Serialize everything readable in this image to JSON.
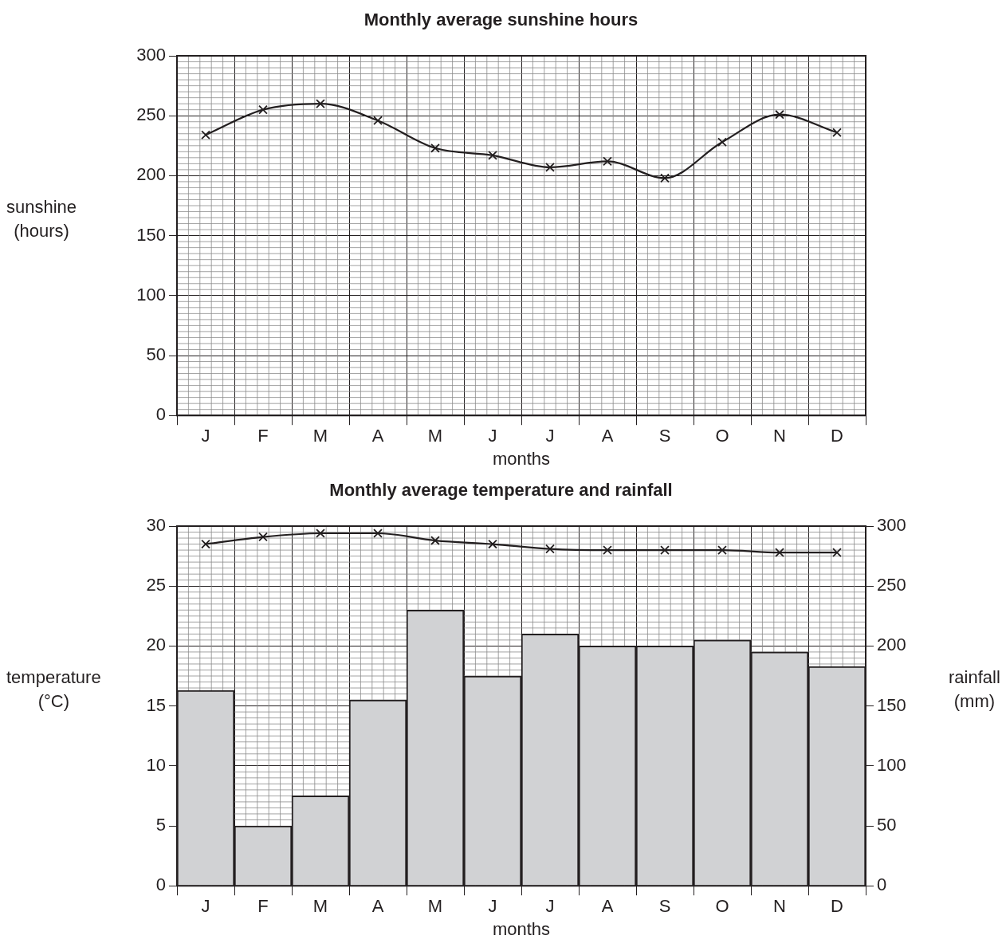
{
  "chart_data": [
    {
      "type": "line",
      "title": "Monthly average sunshine hours",
      "xlabel": "months",
      "ylabel": "sunshine (hours)",
      "categories": [
        "J",
        "F",
        "M",
        "A",
        "M",
        "J",
        "J",
        "A",
        "S",
        "O",
        "N",
        "D"
      ],
      "series": [
        {
          "color": "#231f20",
          "values": [
            234,
            255,
            260,
            246,
            223,
            217,
            207,
            212,
            198,
            228,
            251,
            236
          ]
        }
      ],
      "ylim": [
        0,
        300
      ],
      "yticks": [
        0,
        50,
        100,
        150,
        200,
        250,
        300
      ],
      "grid": true,
      "marker": "cross"
    },
    {
      "type": "bar",
      "title": "Monthly average temperature and rainfall",
      "xlabel": "months",
      "ylabel": "temperature (°C)",
      "y2label": "rainfall (mm)",
      "categories": [
        "J",
        "F",
        "M",
        "A",
        "M",
        "J",
        "J",
        "A",
        "S",
        "O",
        "N",
        "D"
      ],
      "series": [
        {
          "axis": "y2",
          "color": "#d1d2d4",
          "values": [
            163,
            50,
            75,
            155,
            230,
            175,
            210,
            200,
            200,
            205,
            195,
            183
          ]
        },
        {
          "type": "line",
          "color": "#231f20",
          "values": [
            28.5,
            29.1,
            29.4,
            29.4,
            28.8,
            28.5,
            28.1,
            28.0,
            28.0,
            28.0,
            27.8,
            27.8
          ]
        }
      ],
      "ylim": [
        0,
        30
      ],
      "yticks": [
        0,
        5,
        10,
        15,
        20,
        25,
        30
      ],
      "y2lim": [
        0,
        300
      ],
      "y2ticks": [
        0,
        50,
        100,
        150,
        200,
        250,
        300
      ],
      "grid": true,
      "marker": "cross"
    }
  ]
}
